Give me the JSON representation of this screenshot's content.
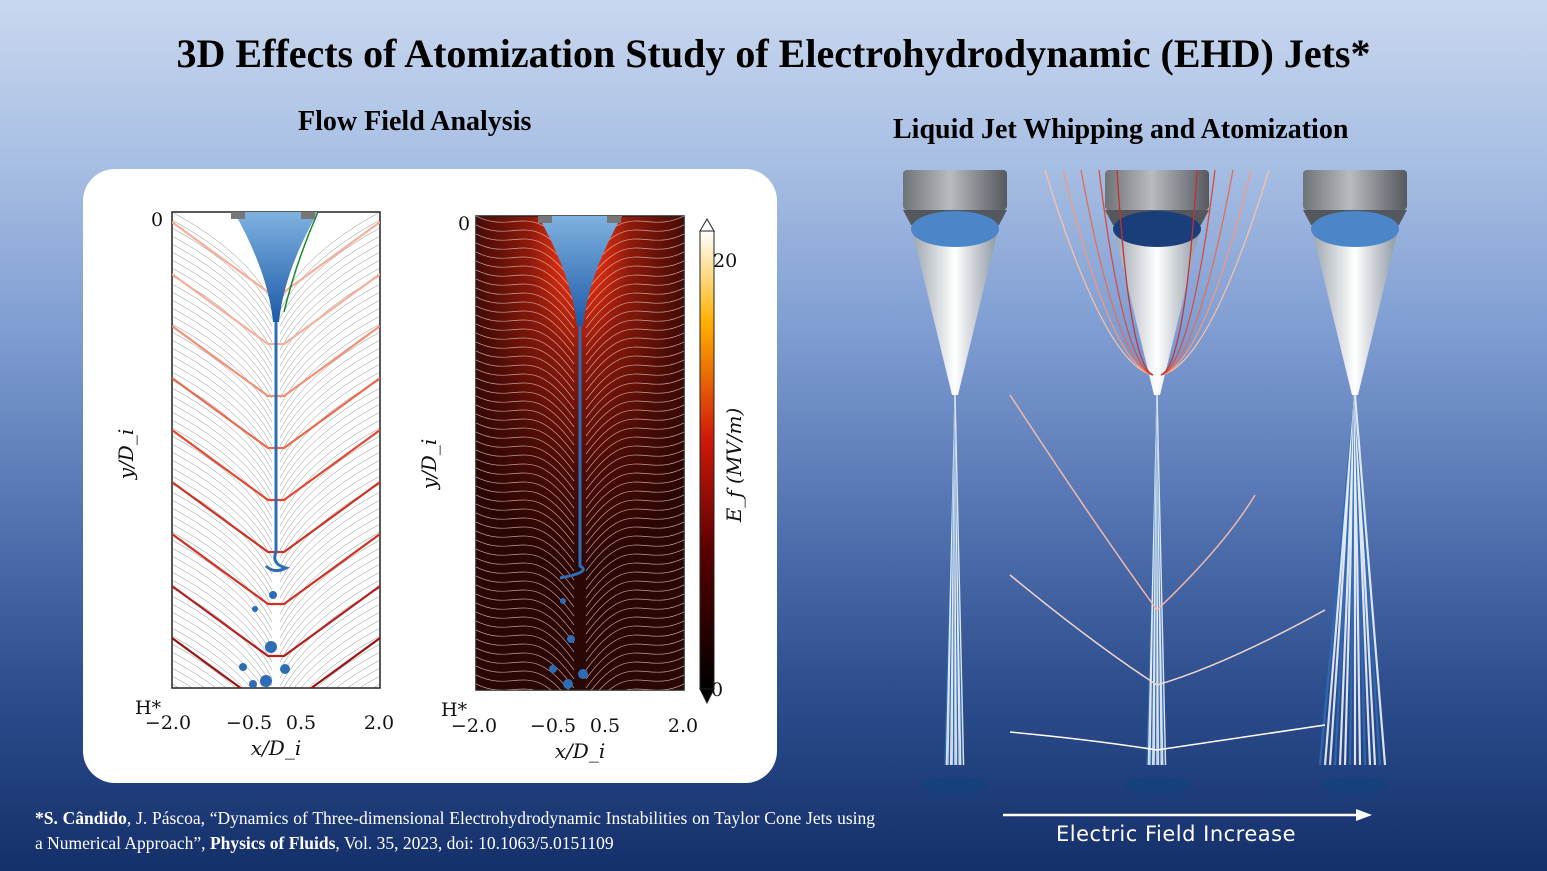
{
  "title": "3D Effects of Atomization Study of Electrohydrodynamic (EHD) Jets*",
  "left_heading": "Flow Field Analysis",
  "right_heading": "Liquid Jet Whipping and Atomization",
  "plot1": {
    "y_top": "0",
    "y_bottom": "H*",
    "ylabel": "y/D_i",
    "xlabel": "x/D_i",
    "xticks": [
      "−2.0",
      "−0.5",
      "0.5",
      "2.0"
    ]
  },
  "plot2": {
    "y_top": "0",
    "y_bottom": "H*",
    "ylabel": "y/D_i",
    "xlabel": "x/D_i",
    "xticks": [
      "−2.0",
      "−0.5",
      "0.5",
      "2.0"
    ],
    "colorbar_label": "E_f (MV/m)",
    "colorbar_max": "20",
    "colorbar_min": "0"
  },
  "caption": "Electric Field Increase",
  "reference": {
    "author_bold": "*S. Cândido",
    "text_1": ", J. Páscoa, “Dynamics of Three-dimensional Electrohydrodynamic Instabilities on Taylor Cone Jets using a Numerical Approach”, ",
    "journal_bold": "Physics of Fluids",
    "text_2": ", Vol. 35, 2023, doi: 10.1063/5.0151109"
  },
  "colors": {
    "contour_red": "#c0392b",
    "jet_blue": "#2e6db5",
    "field_dark": "#3a0808"
  }
}
